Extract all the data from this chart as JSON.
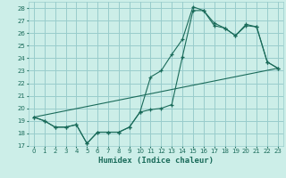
{
  "xlabel": "Humidex (Indice chaleur)",
  "bg_color": "#cceee8",
  "grid_color": "#99cccc",
  "line_color": "#1a6b5a",
  "xlim": [
    -0.5,
    23.5
  ],
  "ylim": [
    17,
    28.5
  ],
  "xticks": [
    0,
    1,
    2,
    3,
    4,
    5,
    6,
    7,
    8,
    9,
    10,
    11,
    12,
    13,
    14,
    15,
    16,
    17,
    18,
    19,
    20,
    21,
    22,
    23
  ],
  "yticks": [
    17,
    18,
    19,
    20,
    21,
    22,
    23,
    24,
    25,
    26,
    27,
    28
  ],
  "series1_x": [
    0,
    1,
    2,
    3,
    4,
    5,
    6,
    7,
    8,
    9,
    10,
    11,
    12,
    13,
    14,
    15,
    16,
    17,
    18,
    19,
    20,
    21,
    22,
    23
  ],
  "series1_y": [
    19.3,
    19.0,
    18.5,
    18.5,
    18.7,
    17.2,
    18.1,
    18.1,
    18.1,
    18.5,
    19.7,
    19.9,
    20.0,
    20.3,
    24.1,
    27.8,
    27.8,
    26.6,
    26.4,
    25.8,
    26.6,
    26.5,
    23.7,
    23.2
  ],
  "series2_x": [
    0,
    1,
    2,
    3,
    4,
    5,
    6,
    7,
    8,
    9,
    10,
    11,
    12,
    13,
    14,
    15,
    16,
    17,
    18,
    19,
    20,
    21,
    22,
    23
  ],
  "series2_y": [
    19.3,
    19.0,
    18.5,
    18.5,
    18.7,
    17.2,
    18.1,
    18.1,
    18.1,
    18.5,
    19.7,
    22.5,
    23.0,
    24.3,
    25.5,
    28.1,
    27.8,
    26.8,
    26.4,
    25.8,
    26.7,
    26.5,
    23.7,
    23.2
  ],
  "series3_x": [
    0,
    23
  ],
  "series3_y": [
    19.3,
    23.2
  ]
}
